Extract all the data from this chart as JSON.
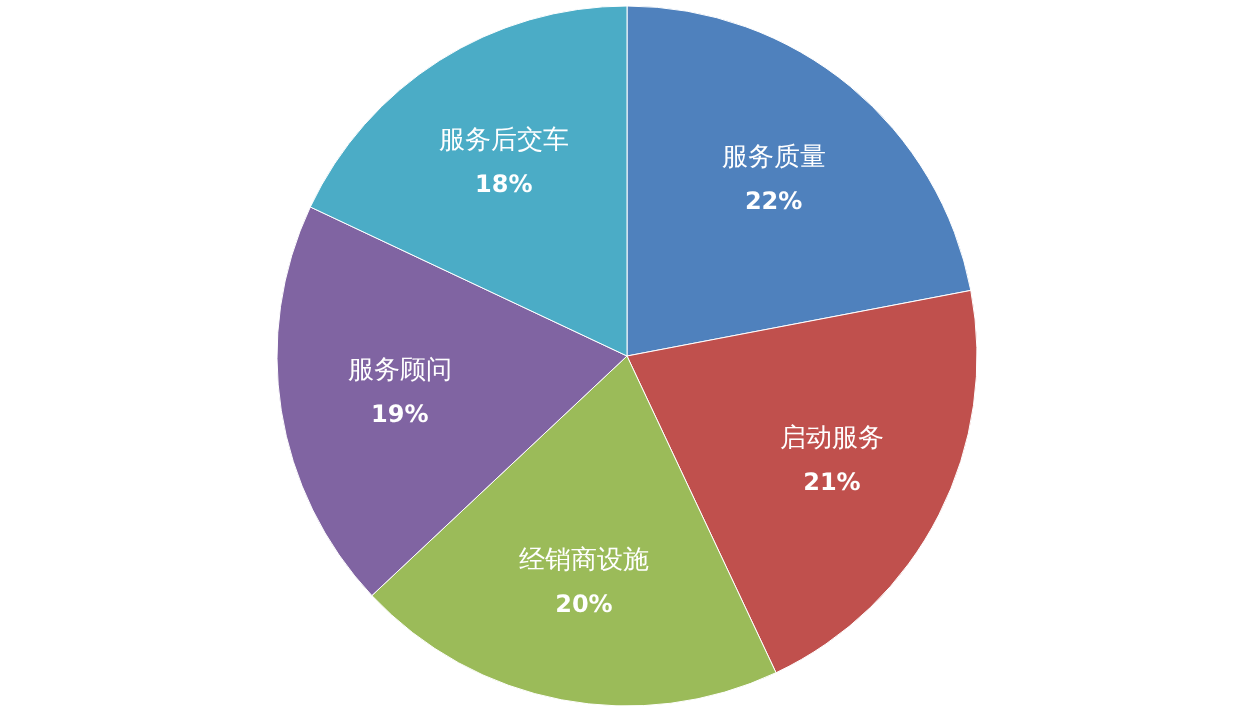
{
  "chart_data": {
    "type": "pie",
    "categories": [
      "服务质量",
      "启动服务",
      "经销商设施",
      "服务顾问",
      "服务后交车"
    ],
    "values": [
      22,
      21,
      20,
      19,
      18
    ],
    "value_labels": [
      "22%",
      "21%",
      "20%",
      "19%",
      "18%"
    ],
    "colors": [
      "#4f81bd",
      "#c0504d",
      "#9bbb59",
      "#8064a2",
      "#4bacc6"
    ]
  }
}
